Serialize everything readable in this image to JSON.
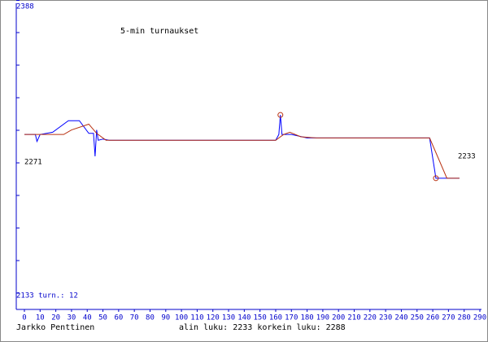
{
  "chart_data": {
    "type": "line",
    "title": "5-min turnaukset",
    "author": "Jarkko Penttinen",
    "footer": "alin luku: 2233  korkein luku: 2288",
    "bottom_label": "2133 turn.: 12",
    "start_label": "2271",
    "end_label": "2233",
    "xlim": [
      0,
      290
    ],
    "xticks": [
      0,
      10,
      20,
      30,
      40,
      50,
      60,
      70,
      80,
      90,
      100,
      110,
      120,
      130,
      140,
      150,
      160,
      170,
      180,
      190,
      200,
      210,
      220,
      230,
      240,
      250,
      260,
      270,
      280,
      290
    ],
    "ylim": [
      2133,
      2388
    ],
    "yticks": [
      2388
    ],
    "series": [
      {
        "color": "#0000ff",
        "x": [
          0,
          7,
          8,
          10,
          18,
          28,
          35,
          41,
          44,
          45,
          46,
          47,
          50,
          54,
          160,
          162,
          163,
          164,
          170,
          180,
          188,
          258,
          262,
          277
        ],
        "values": [
          2271,
          2271,
          2265,
          2271,
          2273,
          2283,
          2283,
          2272,
          2272,
          2252,
          2275,
          2266,
          2267,
          2266,
          2266,
          2271,
          2288,
          2271,
          2271,
          2268,
          2268,
          2268,
          2233,
          2233
        ]
      },
      {
        "color": "#b83010",
        "x": [
          0,
          25,
          30,
          41,
          46,
          52,
          160,
          165,
          169,
          176,
          186,
          258,
          269,
          277
        ],
        "values": [
          2271,
          2271,
          2275,
          2280,
          2272,
          2266,
          2266,
          2271,
          2273,
          2269,
          2268,
          2268,
          2233,
          2233
        ]
      }
    ],
    "markers": [
      {
        "series": 0,
        "index": 16
      },
      {
        "series": 0,
        "index": 22
      }
    ]
  }
}
